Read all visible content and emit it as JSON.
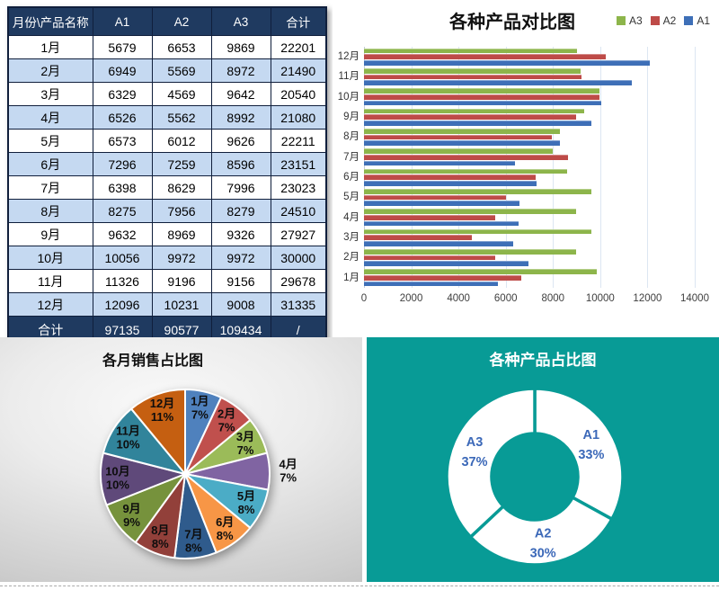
{
  "table": {
    "header": [
      "月份\\产品名称",
      "A1",
      "A2",
      "A3",
      "合计"
    ],
    "rows": [
      [
        "1月",
        "5679",
        "6653",
        "9869",
        "22201"
      ],
      [
        "2月",
        "6949",
        "5569",
        "8972",
        "21490"
      ],
      [
        "3月",
        "6329",
        "4569",
        "9642",
        "20540"
      ],
      [
        "4月",
        "6526",
        "5562",
        "8992",
        "21080"
      ],
      [
        "5月",
        "6573",
        "6012",
        "9626",
        "22211"
      ],
      [
        "6月",
        "7296",
        "7259",
        "8596",
        "23151"
      ],
      [
        "7月",
        "6398",
        "8629",
        "7996",
        "23023"
      ],
      [
        "8月",
        "8275",
        "7956",
        "8279",
        "24510"
      ],
      [
        "9月",
        "9632",
        "8969",
        "9326",
        "27927"
      ],
      [
        "10月",
        "10056",
        "9972",
        "9972",
        "30000"
      ],
      [
        "11月",
        "11326",
        "9196",
        "9156",
        "29678"
      ],
      [
        "12月",
        "12096",
        "10231",
        "9008",
        "31335"
      ]
    ],
    "footer": [
      "合计",
      "97135",
      "90577",
      "109434",
      "/"
    ]
  },
  "chart_data": [
    {
      "id": "bar",
      "type": "bar",
      "orientation": "horizontal",
      "title": "各种产品对比图",
      "categories": [
        "1月",
        "2月",
        "3月",
        "4月",
        "5月",
        "6月",
        "7月",
        "8月",
        "9月",
        "10月",
        "11月",
        "12月"
      ],
      "series": [
        {
          "name": "A1",
          "color": "#3e6fb7",
          "values": [
            5679,
            6949,
            6329,
            6526,
            6573,
            7296,
            6398,
            8275,
            9632,
            10056,
            11326,
            12096
          ]
        },
        {
          "name": "A2",
          "color": "#be4b48",
          "values": [
            6653,
            5569,
            4569,
            5562,
            6012,
            7259,
            8629,
            7956,
            8969,
            9972,
            9196,
            10231
          ]
        },
        {
          "name": "A3",
          "color": "#8db54b",
          "values": [
            9869,
            8972,
            9642,
            8992,
            9626,
            8596,
            7996,
            8279,
            9326,
            9972,
            9156,
            9008
          ]
        }
      ],
      "legend_order": [
        "A3",
        "A2",
        "A1"
      ],
      "legend_position": "top-right",
      "xlim": [
        0,
        14000
      ],
      "xticks": [
        0,
        2000,
        4000,
        6000,
        8000,
        10000,
        12000,
        14000
      ],
      "grid": true
    },
    {
      "id": "pie",
      "type": "pie",
      "title": "各月销售占比图",
      "labels": [
        "1月",
        "2月",
        "3月",
        "4月",
        "5月",
        "6月",
        "7月",
        "8月",
        "9月",
        "10月",
        "11月",
        "12月"
      ],
      "values": [
        7,
        7,
        7,
        7,
        8,
        8,
        8,
        8,
        9,
        10,
        10,
        11
      ],
      "value_suffix": "%",
      "colors": [
        "#4f81bd",
        "#c0504d",
        "#9bbb59",
        "#8064a2",
        "#4bacc6",
        "#f79646",
        "#2f5b8c",
        "#92403a",
        "#76923c",
        "#5f497a",
        "#31849b",
        "#c55f11"
      ],
      "label_r": [
        0.8,
        0.8,
        0.8,
        1.22,
        0.8,
        0.8,
        0.8,
        0.8,
        0.8,
        0.8,
        0.8,
        0.8
      ]
    },
    {
      "id": "donut",
      "type": "pie",
      "subtype": "donut",
      "title": "各种产品占比图",
      "labels": [
        "A1",
        "A2",
        "A3"
      ],
      "values": [
        33,
        30,
        37
      ],
      "value_suffix": "%",
      "background_color": "#089b96",
      "ring_color": "#ffffff",
      "label_color": "#3b68b8"
    }
  ]
}
